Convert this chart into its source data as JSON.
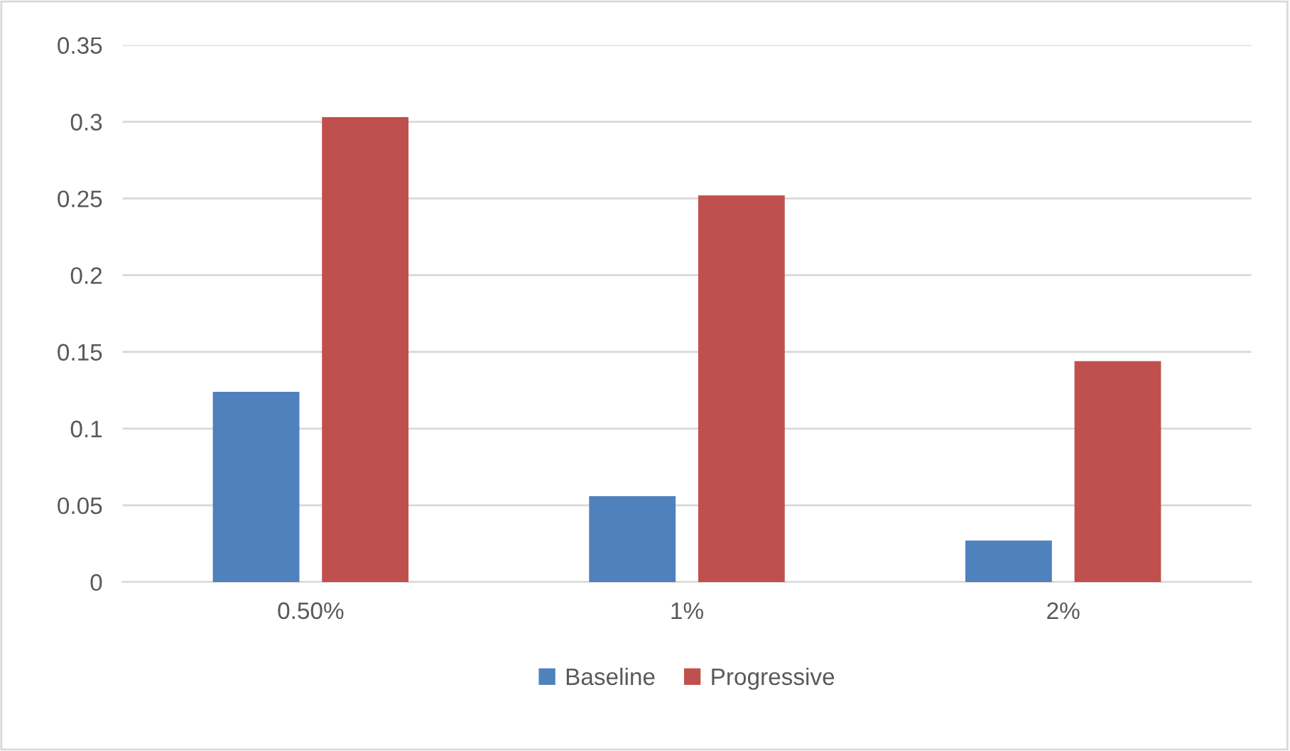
{
  "chart_data": {
    "type": "bar",
    "categories": [
      "0.50%",
      "1%",
      "2%"
    ],
    "series": [
      {
        "name": "Baseline",
        "color": "#4f81bd",
        "values": [
          0.124,
          0.056,
          0.027
        ]
      },
      {
        "name": "Progressive",
        "color": "#c0504d",
        "values": [
          0.303,
          0.252,
          0.144
        ]
      }
    ],
    "ylim": [
      0,
      0.35
    ],
    "yticks": [
      0,
      0.05,
      0.1,
      0.15,
      0.2,
      0.25,
      0.3,
      0.35
    ],
    "grid": "y",
    "legend": "bottom"
  }
}
